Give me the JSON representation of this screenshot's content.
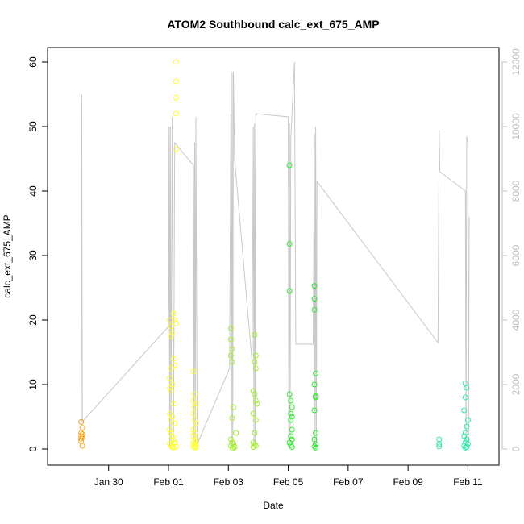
{
  "chart_data": {
    "type": "scatter",
    "title": "ATOM2 Southbound calc_ext_675_AMP",
    "xlabel": "Date",
    "ylabel": "calc_ext_675_AMP",
    "xlim": [
      "2015-01-28T12:00",
      "2015-02-11T12:00"
    ],
    "ylim": [
      0,
      60
    ],
    "y2lim": [
      0,
      12000
    ],
    "x_ticks": [
      {
        "date": "2015-01-30",
        "label": "Jan 30"
      },
      {
        "date": "2015-02-01",
        "label": "Feb 01"
      },
      {
        "date": "2015-02-03",
        "label": "Feb 03"
      },
      {
        "date": "2015-02-05",
        "label": "Feb 05"
      },
      {
        "date": "2015-02-07",
        "label": "Feb 07"
      },
      {
        "date": "2015-02-09",
        "label": "Feb 09"
      },
      {
        "date": "2015-02-11",
        "label": "Feb 11"
      }
    ],
    "y_ticks": [
      0,
      10,
      20,
      30,
      40,
      50,
      60
    ],
    "y2_ticks": [
      0,
      2000,
      4000,
      6000,
      8000,
      10000,
      12000
    ],
    "grid": false,
    "colors": {
      "right_axis": "#bdbdbd",
      "depth_line": "#c8c8c8"
    },
    "series": [
      {
        "color": "#f5a623",
        "points": [
          [
            "2015-01-29T02:00",
            4.2
          ],
          [
            "2015-01-29T02:00",
            2.5
          ],
          [
            "2015-01-29T02:00",
            2.0
          ],
          [
            "2015-01-29T02:00",
            1.6
          ],
          [
            "2015-01-29T02:00",
            1.2
          ],
          [
            "2015-01-29T03:00",
            3.3
          ],
          [
            "2015-01-29T03:00",
            2.3
          ],
          [
            "2015-01-29T03:00",
            1.8
          ],
          [
            "2015-01-29T03:00",
            0.5
          ]
        ]
      },
      {
        "color": "#ffff33",
        "points": [
          [
            "2015-02-01T06:00",
            60.0
          ],
          [
            "2015-02-01T06:00",
            57.0
          ],
          [
            "2015-02-01T06:00",
            54.5
          ],
          [
            "2015-02-01T06:00",
            52.0
          ],
          [
            "2015-02-01T06:00",
            46.5
          ],
          [
            "2015-02-01T01:00",
            20.0
          ],
          [
            "2015-02-01T02:00",
            19.0
          ],
          [
            "2015-02-01T03:00",
            18.0
          ],
          [
            "2015-02-01T02:00",
            17.5
          ],
          [
            "2015-02-01T04:00",
            21.0
          ],
          [
            "2015-02-01T05:00",
            20.0
          ],
          [
            "2015-02-01T06:00",
            19.5
          ],
          [
            "2015-02-01T04:00",
            14.0
          ],
          [
            "2015-02-01T05:00",
            13.0
          ],
          [
            "2015-02-01T02:00",
            12.5
          ],
          [
            "2015-02-01T01:00",
            11.0
          ],
          [
            "2015-02-01T03:00",
            10.0
          ],
          [
            "2015-02-01T01:00",
            9.5
          ],
          [
            "2015-02-01T02:00",
            9.0
          ],
          [
            "2015-02-01T04:00",
            7.0
          ],
          [
            "2015-02-01T01:00",
            5.5
          ],
          [
            "2015-02-01T03:00",
            5.0
          ],
          [
            "2015-02-01T02:00",
            4.5
          ],
          [
            "2015-02-01T05:00",
            4.0
          ],
          [
            "2015-02-01T01:00",
            3.0
          ],
          [
            "2015-02-01T02:00",
            2.5
          ],
          [
            "2015-02-01T03:00",
            2.0
          ],
          [
            "2015-02-01T04:00",
            1.5
          ],
          [
            "2015-02-01T05:00",
            1.0
          ],
          [
            "2015-02-01T01:00",
            0.8
          ],
          [
            "2015-02-01T02:00",
            0.5
          ],
          [
            "2015-02-01T03:00",
            0.3
          ],
          [
            "2015-02-01T04:00",
            0.2
          ],
          [
            "2015-02-01T06:00",
            0.4
          ],
          [
            "2015-02-01T20:00",
            12.0
          ],
          [
            "2015-02-01T21:00",
            8.5
          ],
          [
            "2015-02-01T20:00",
            7.5
          ],
          [
            "2015-02-01T22:00",
            7.0
          ],
          [
            "2015-02-01T21:00",
            6.5
          ],
          [
            "2015-02-01T20:00",
            5.5
          ],
          [
            "2015-02-01T21:00",
            4.5
          ],
          [
            "2015-02-01T22:00",
            4.0
          ],
          [
            "2015-02-01T20:00",
            3.0
          ],
          [
            "2015-02-01T21:00",
            2.5
          ],
          [
            "2015-02-01T20:00",
            2.0
          ],
          [
            "2015-02-01T22:00",
            1.5
          ],
          [
            "2015-02-01T21:00",
            1.2
          ],
          [
            "2015-02-01T20:00",
            1.0
          ],
          [
            "2015-02-01T22:00",
            0.8
          ],
          [
            "2015-02-01T21:00",
            0.6
          ],
          [
            "2015-02-01T20:00",
            0.4
          ],
          [
            "2015-02-01T22:00",
            0.3
          ],
          [
            "2015-02-01T21:00",
            0.2
          ]
        ]
      },
      {
        "color": "#a6ee33",
        "points": [
          [
            "2015-02-03T02:00",
            18.7
          ],
          [
            "2015-02-03T02:00",
            17.0
          ],
          [
            "2015-02-03T03:00",
            15.5
          ],
          [
            "2015-02-03T02:00",
            14.5
          ],
          [
            "2015-02-03T03:00",
            13.5
          ],
          [
            "2015-02-03T04:00",
            6.5
          ],
          [
            "2015-02-03T03:00",
            4.8
          ],
          [
            "2015-02-03T06:00",
            2.5
          ],
          [
            "2015-02-03T02:00",
            1.5
          ],
          [
            "2015-02-03T03:00",
            1.0
          ],
          [
            "2015-02-03T04:00",
            0.8
          ],
          [
            "2015-02-03T02:00",
            0.5
          ],
          [
            "2015-02-03T05:00",
            0.3
          ],
          [
            "2015-02-03T03:00",
            0.2
          ],
          [
            "2015-02-03T04:00",
            0.1
          ],
          [
            "2015-02-03T21:00",
            17.7
          ],
          [
            "2015-02-03T22:00",
            14.5
          ],
          [
            "2015-02-03T21:00",
            13.5
          ],
          [
            "2015-02-03T22:00",
            12.5
          ],
          [
            "2015-02-03T20:00",
            9.0
          ],
          [
            "2015-02-03T21:00",
            8.5
          ],
          [
            "2015-02-03T22:00",
            7.5
          ],
          [
            "2015-02-03T23:00",
            7.0
          ],
          [
            "2015-02-03T20:00",
            5.5
          ],
          [
            "2015-02-03T22:00",
            4.5
          ],
          [
            "2015-02-03T21:00",
            2.5
          ],
          [
            "2015-02-03T20:00",
            1.0
          ],
          [
            "2015-02-03T21:00",
            0.7
          ],
          [
            "2015-02-03T22:00",
            0.5
          ],
          [
            "2015-02-03T20:00",
            0.3
          ]
        ]
      },
      {
        "color": "#33e833",
        "points": [
          [
            "2015-02-05T01:00",
            44.0
          ],
          [
            "2015-02-05T01:00",
            31.8
          ],
          [
            "2015-02-05T01:00",
            24.5
          ],
          [
            "2015-02-05T01:00",
            8.5
          ],
          [
            "2015-02-05T02:00",
            7.5
          ],
          [
            "2015-02-05T03:00",
            6.5
          ],
          [
            "2015-02-05T02:00",
            5.5
          ],
          [
            "2015-02-05T03:00",
            5.0
          ],
          [
            "2015-02-05T02:00",
            4.5
          ],
          [
            "2015-02-05T03:00",
            3.0
          ],
          [
            "2015-02-05T02:00",
            2.0
          ],
          [
            "2015-02-05T03:00",
            1.5
          ],
          [
            "2015-02-05T01:00",
            1.0
          ],
          [
            "2015-02-05T02:00",
            0.6
          ],
          [
            "2015-02-05T03:00",
            0.3
          ],
          [
            "2015-02-05T21:00",
            25.3
          ],
          [
            "2015-02-05T21:00",
            23.3
          ],
          [
            "2015-02-05T21:00",
            21.6
          ],
          [
            "2015-02-05T22:00",
            11.7
          ],
          [
            "2015-02-05T21:00",
            10.0
          ],
          [
            "2015-02-05T22:00",
            8.2
          ],
          [
            "2015-02-05T22:00",
            8.0
          ],
          [
            "2015-02-05T21:00",
            6.0
          ],
          [
            "2015-02-05T22:00",
            2.5
          ],
          [
            "2015-02-05T21:00",
            1.5
          ],
          [
            "2015-02-05T22:00",
            0.8
          ],
          [
            "2015-02-05T21:00",
            0.4
          ],
          [
            "2015-02-05T22:00",
            0.2
          ]
        ]
      },
      {
        "color": "#33e8a6",
        "points": [
          [
            "2015-02-10T01:00",
            1.5
          ],
          [
            "2015-02-10T01:00",
            0.8
          ],
          [
            "2015-02-10T01:00",
            0.4
          ],
          [
            "2015-02-10T22:00",
            10.2
          ],
          [
            "2015-02-10T23:00",
            9.5
          ],
          [
            "2015-02-10T22:00",
            8.0
          ],
          [
            "2015-02-10T21:00",
            6.0
          ],
          [
            "2015-02-11T00:00",
            4.5
          ],
          [
            "2015-02-10T23:00",
            3.5
          ],
          [
            "2015-02-10T22:00",
            2.5
          ],
          [
            "2015-02-10T21:00",
            2.0
          ],
          [
            "2015-02-10T23:00",
            1.5
          ],
          [
            "2015-02-10T22:00",
            1.0
          ],
          [
            "2015-02-11T00:00",
            0.8
          ],
          [
            "2015-02-10T21:00",
            0.5
          ],
          [
            "2015-02-10T23:00",
            0.3
          ],
          [
            "2015-02-10T22:00",
            0.2
          ]
        ]
      }
    ],
    "depth_line": [
      [
        "2015-01-29T02:00",
        850
      ],
      [
        "2015-01-29T02:30",
        11000
      ],
      [
        "2015-01-29T03:00",
        850
      ],
      [
        "2015-02-01T00:00",
        3800
      ],
      [
        "2015-02-01T00:30",
        10000
      ],
      [
        "2015-02-01T01:00",
        100
      ],
      [
        "2015-02-01T01:30",
        10000
      ],
      [
        "2015-02-01T02:00",
        100
      ],
      [
        "2015-02-01T03:00",
        10300
      ],
      [
        "2015-02-01T04:00",
        200
      ],
      [
        "2015-02-01T05:00",
        9500
      ],
      [
        "2015-02-01T20:00",
        8800
      ],
      [
        "2015-02-01T20:30",
        200
      ],
      [
        "2015-02-01T21:00",
        9500
      ],
      [
        "2015-02-01T21:30",
        200
      ],
      [
        "2015-02-01T22:00",
        10300
      ],
      [
        "2015-02-01T23:00",
        150
      ],
      [
        "2015-02-03T01:00",
        2500
      ],
      [
        "2015-02-03T02:00",
        10400
      ],
      [
        "2015-02-03T02:30",
        100
      ],
      [
        "2015-02-03T03:00",
        11700
      ],
      [
        "2015-02-03T03:30",
        100
      ],
      [
        "2015-02-03T04:00",
        11700
      ],
      [
        "2015-02-03T05:00",
        9000
      ],
      [
        "2015-02-03T19:00",
        2700
      ],
      [
        "2015-02-03T20:00",
        10000
      ],
      [
        "2015-02-03T20:30",
        100
      ],
      [
        "2015-02-03T21:00",
        10100
      ],
      [
        "2015-02-03T21:30",
        100
      ],
      [
        "2015-02-03T22:00",
        10400
      ],
      [
        "2015-02-05T00:00",
        10300
      ],
      [
        "2015-02-05T00:30",
        100
      ],
      [
        "2015-02-05T01:00",
        10100
      ],
      [
        "2015-02-05T01:30",
        100
      ],
      [
        "2015-02-05T02:00",
        9600
      ],
      [
        "2015-02-05T05:00",
        12000
      ],
      [
        "2015-02-05T06:00",
        3250
      ],
      [
        "2015-02-05T20:00",
        3250
      ],
      [
        "2015-02-05T21:00",
        9800
      ],
      [
        "2015-02-05T21:30",
        100
      ],
      [
        "2015-02-05T22:00",
        10000
      ],
      [
        "2015-02-05T22:30",
        100
      ],
      [
        "2015-02-05T23:00",
        8300
      ],
      [
        "2015-02-10T00:00",
        3300
      ],
      [
        "2015-02-10T01:00",
        9900
      ],
      [
        "2015-02-10T01:30",
        8600
      ],
      [
        "2015-02-10T22:00",
        8000
      ],
      [
        "2015-02-10T22:30",
        100
      ],
      [
        "2015-02-10T23:00",
        9700
      ],
      [
        "2015-02-11T00:00",
        9500
      ],
      [
        "2015-02-11T00:30",
        100
      ],
      [
        "2015-02-11T01:00",
        7200
      ]
    ]
  }
}
